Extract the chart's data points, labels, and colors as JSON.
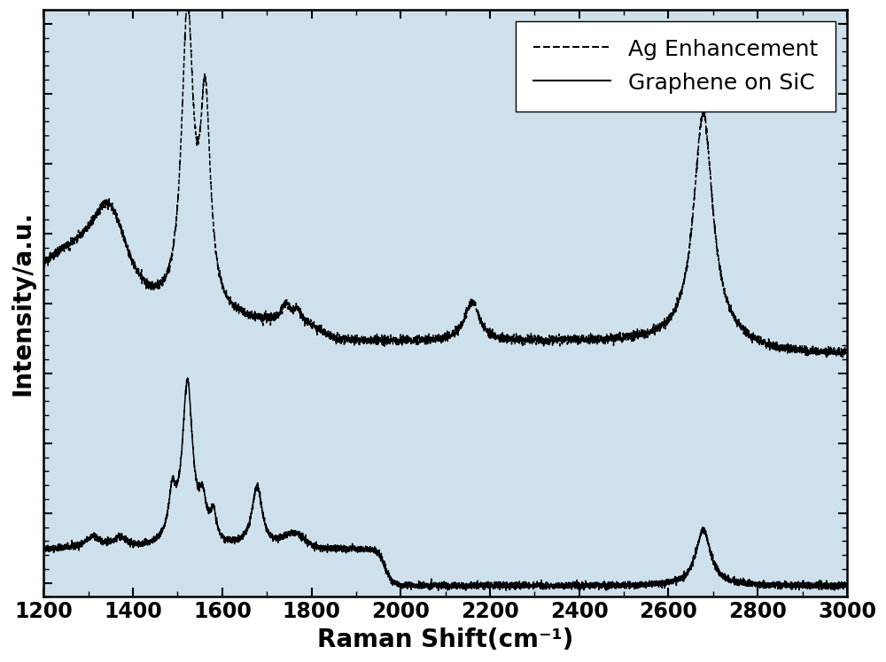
{
  "title": "",
  "xlabel": "Raman Shift(cm⁻¹)",
  "ylabel": "Intensity/a.u.",
  "xlim": [
    1200,
    3000
  ],
  "xticks": [
    1200,
    1400,
    1600,
    1800,
    2000,
    2200,
    2400,
    2600,
    2800,
    3000
  ],
  "background_color": "#ffffff",
  "plot_bg_color": "#cde0ec",
  "line_color": "#000000",
  "legend_labels": [
    "Ag Enhancement",
    "Graphene on SiC"
  ],
  "legend_linestyles": [
    "--",
    "-"
  ],
  "xlabel_fontsize": 20,
  "ylabel_fontsize": 20,
  "tick_fontsize": 17,
  "legend_fontsize": 18
}
